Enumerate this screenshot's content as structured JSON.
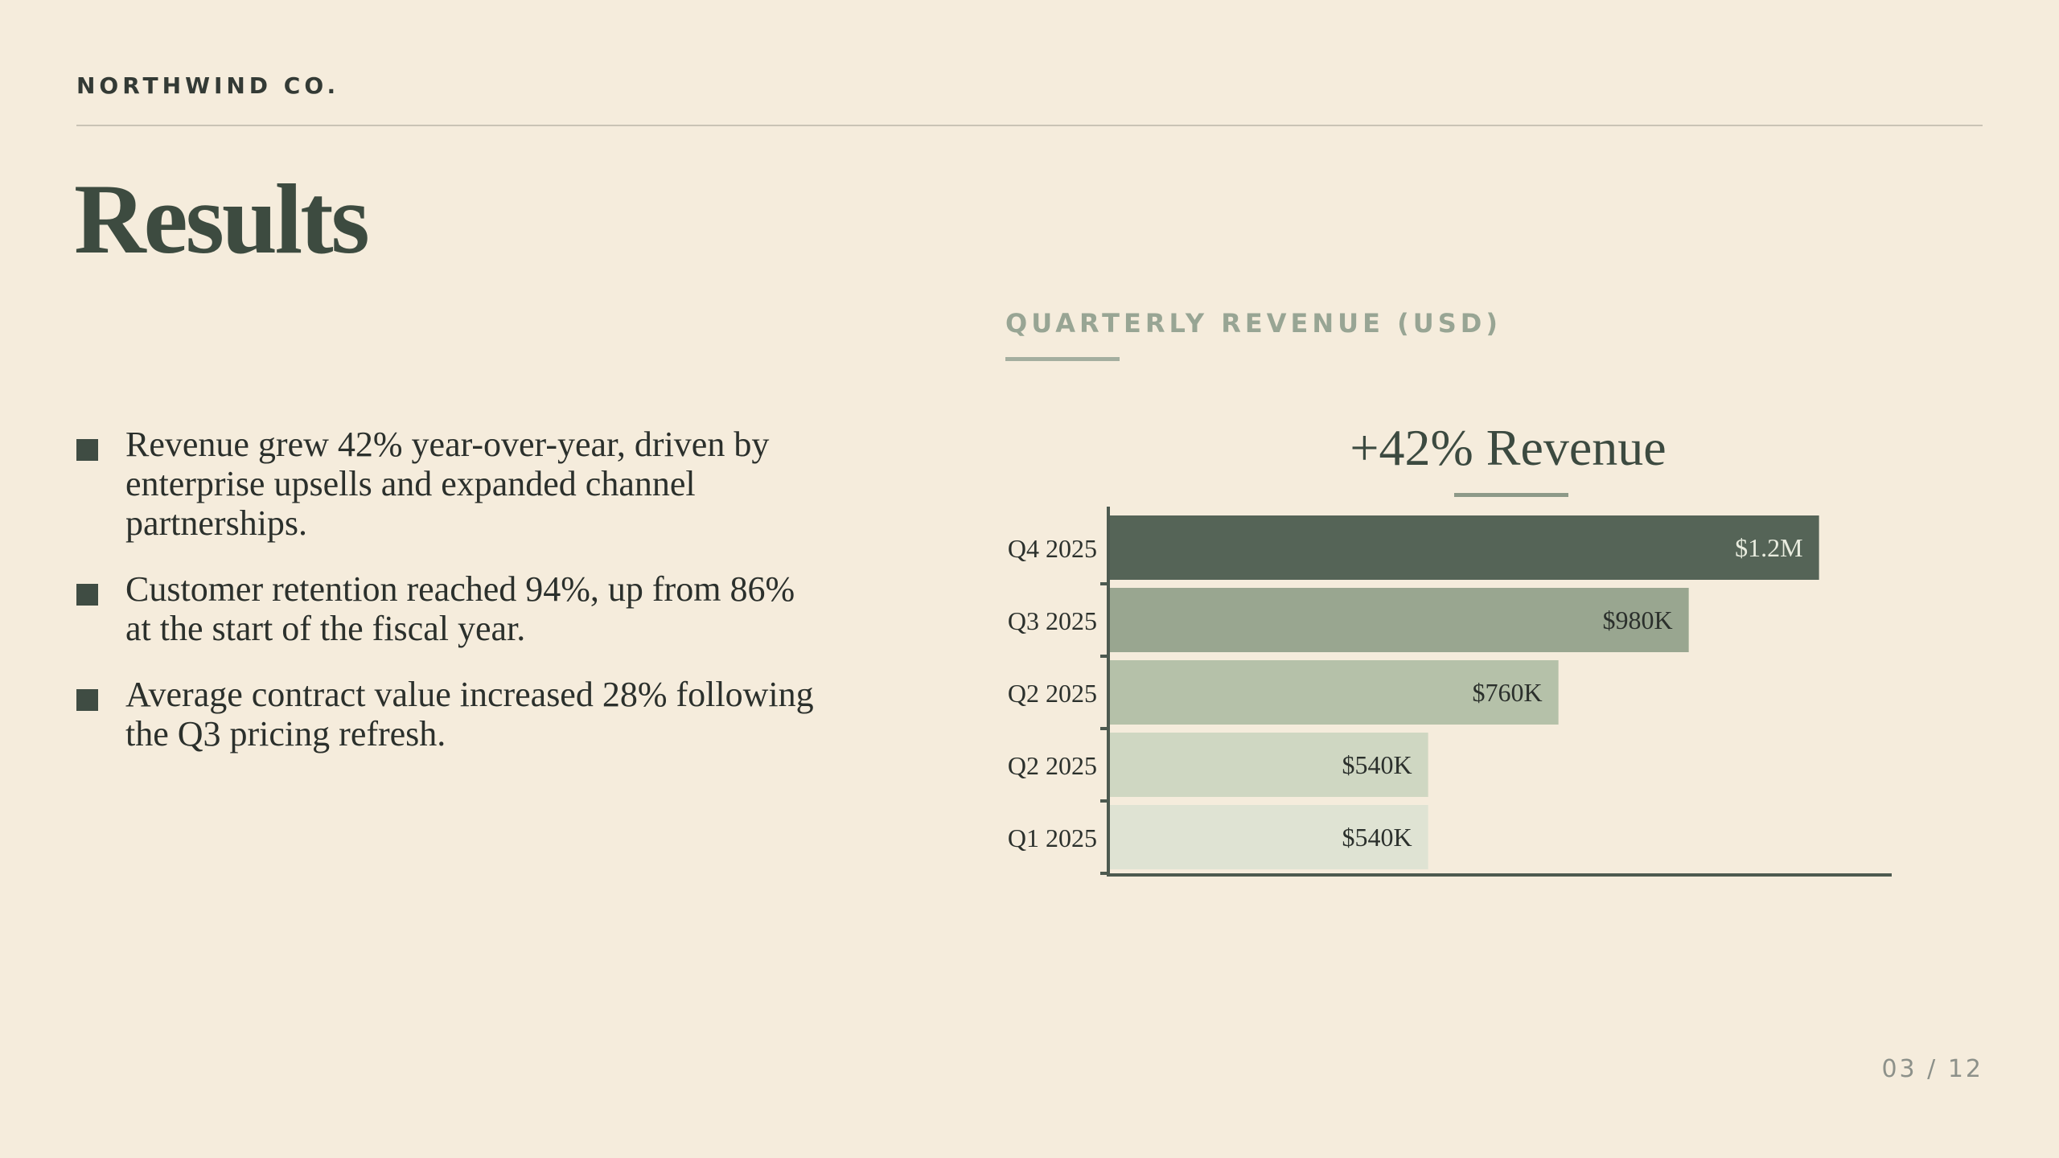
{
  "brand": "NORTHWIND CO.",
  "title": "Results",
  "bullets": [
    "Revenue grew 42% year-over-year, driven by enterprise upsells and expanded channel partnerships.",
    "Customer retention reached 94%, up from 86% at the start of the fiscal year.",
    "Average contract value increased 28% following the Q3 pricing refresh."
  ],
  "chart_section_title": "QUARTERLY REVENUE (USD)",
  "chart_headline": "+42% Revenue",
  "page_number": "03 / 12",
  "colors": {
    "background": "#f5ecdc",
    "bars": [
      "#556457",
      "#99a690",
      "#b5c1a9",
      "#cfd7c2",
      "#dfe3d3"
    ],
    "axis": "#4d5a50"
  },
  "chart_data": {
    "type": "bar",
    "orientation": "horizontal",
    "categories": [
      "Q4 2025",
      "Q3 2025",
      "Q2 2025",
      "Q2 2025",
      "Q1 2025"
    ],
    "values": [
      1200,
      980,
      760,
      540,
      540
    ],
    "value_units": "thousands USD",
    "data_labels": [
      "$1.2M",
      "$980K",
      "$760K",
      "$540K",
      "$540K"
    ],
    "xlim": [
      0,
      1320
    ],
    "grid": false
  }
}
